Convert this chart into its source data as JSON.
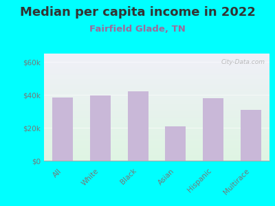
{
  "title": "Median per capita income in 2022",
  "subtitle": "Fairfield Glade, TN",
  "categories": [
    "All",
    "White",
    "Black",
    "Asian",
    "Hispanic",
    "Multirace"
  ],
  "values": [
    38500,
    39500,
    42000,
    21000,
    38000,
    31000
  ],
  "bar_color": "#c9b8d8",
  "title_fontsize": 13,
  "subtitle_fontsize": 9.5,
  "subtitle_color": "#9b6b9b",
  "background_color": "#00ffff",
  "plot_bg_top_color": "#f0f0f8",
  "plot_bg_bottom_color": "#dff5e3",
  "ylabel_ticks": [
    0,
    20000,
    40000,
    60000
  ],
  "ylabel_labels": [
    "$0",
    "$20k",
    "$40k",
    "$60k"
  ],
  "ylim": [
    0,
    65000
  ],
  "watermark": "City-Data.com",
  "tick_label_color": "#777777",
  "axis_color": "#aaaaaa",
  "title_color": "#333333"
}
